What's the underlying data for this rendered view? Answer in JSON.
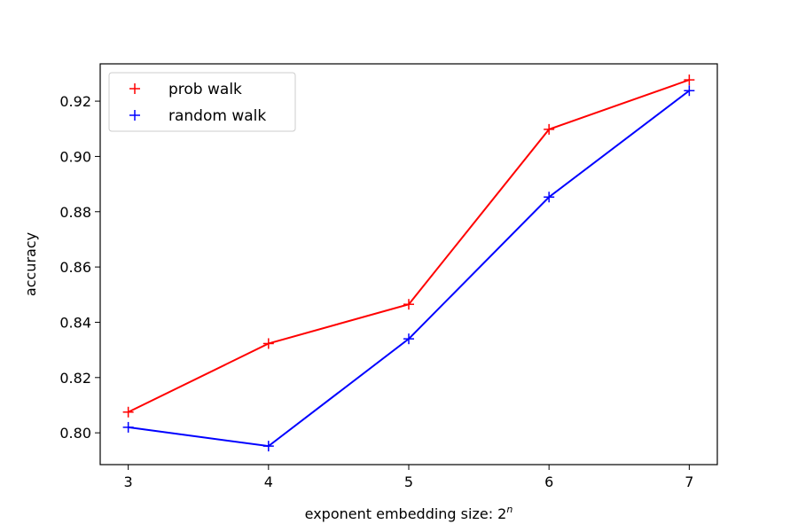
{
  "chart_data": {
    "type": "line",
    "xlabel": "exponent embedding size: 2",
    "xlabel_superscript": "n",
    "ylabel": "accuracy",
    "x": [
      3,
      4,
      5,
      6,
      7
    ],
    "xlim": [
      2.8,
      7.2
    ],
    "ylim": [
      0.7885,
      0.9335
    ],
    "xticks": [
      3,
      4,
      5,
      6,
      7
    ],
    "yticks": [
      0.8,
      0.82,
      0.84,
      0.86,
      0.88,
      0.9,
      0.92
    ],
    "grid": false,
    "legend_position": "top-left",
    "series": [
      {
        "name": "prob walk",
        "color": "#ff0000",
        "marker": "+",
        "values": [
          0.8075,
          0.8323,
          0.8465,
          0.9098,
          0.9277
        ]
      },
      {
        "name": "random walk",
        "color": "#0000ff",
        "marker": "+",
        "values": [
          0.802,
          0.7952,
          0.834,
          0.8853,
          0.9238
        ]
      }
    ]
  }
}
